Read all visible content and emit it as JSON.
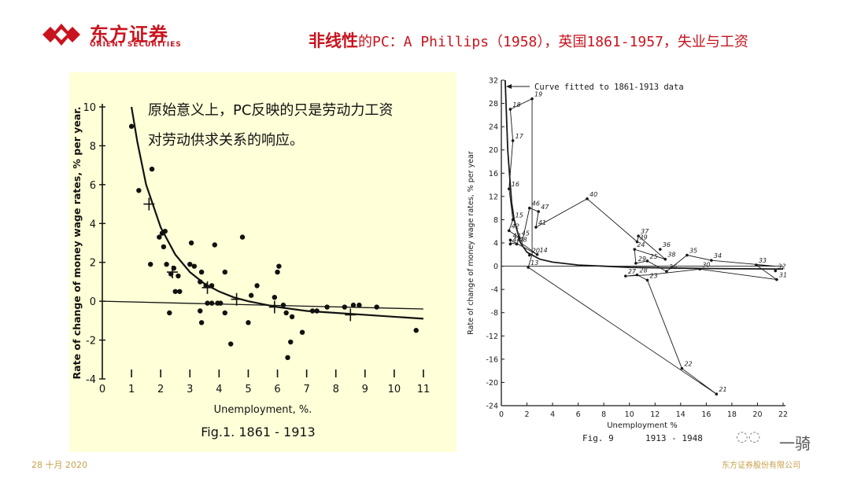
{
  "header": {
    "brand_cn": "东方证券",
    "brand_en": "ORIENT SECURITIES",
    "title_em": "非线性",
    "title_rest": "的PC：A Phillips（1958），英国1861-1957，失业与工资"
  },
  "footer": {
    "date": "28 十月 2020",
    "company": "东方证券股份有限公司"
  },
  "watermark": {
    "name": "一骑"
  },
  "colors": {
    "brand_red": "#c8141e",
    "footer_gold": "#c8a04a",
    "scan_bg": "#ffffd8"
  },
  "chart_data": [
    {
      "type": "scatter",
      "caption": "Fig.1. 1861 - 1913",
      "annotation": [
        "原始意义上，PC反映的只是劳动力工资",
        "对劳动供求关系的响应。"
      ],
      "xlabel": "Unemployment,   %.",
      "ylabel": "Rate of change of money wage rates, % per year.",
      "xlim": [
        0,
        11
      ],
      "ylim": [
        -4,
        10
      ],
      "x_ticks": [
        0,
        1,
        2,
        3,
        4,
        5,
        6,
        7,
        8,
        9,
        10,
        11
      ],
      "y_ticks": [
        -4,
        -2,
        0,
        2,
        4,
        6,
        8,
        10
      ],
      "points": [
        [
          1.0,
          9.0
        ],
        [
          1.25,
          5.7
        ],
        [
          1.7,
          6.8
        ],
        [
          1.65,
          1.9
        ],
        [
          1.95,
          3.3
        ],
        [
          2.05,
          3.5
        ],
        [
          2.1,
          2.8
        ],
        [
          2.15,
          3.6
        ],
        [
          2.2,
          1.9
        ],
        [
          2.35,
          1.4
        ],
        [
          2.45,
          1.7
        ],
        [
          2.6,
          1.3
        ],
        [
          2.3,
          -0.6
        ],
        [
          2.5,
          0.5
        ],
        [
          2.65,
          0.5
        ],
        [
          3.0,
          1.9
        ],
        [
          3.15,
          1.8
        ],
        [
          3.05,
          3.0
        ],
        [
          3.35,
          1.0
        ],
        [
          3.35,
          -0.5
        ],
        [
          3.4,
          -1.1
        ],
        [
          3.4,
          1.5
        ],
        [
          3.55,
          0.8
        ],
        [
          3.6,
          -0.1
        ],
        [
          3.75,
          -0.1
        ],
        [
          3.75,
          0.8
        ],
        [
          3.85,
          2.9
        ],
        [
          3.95,
          -0.1
        ],
        [
          4.05,
          -0.1
        ],
        [
          4.2,
          -0.6
        ],
        [
          4.4,
          -2.2
        ],
        [
          4.2,
          1.5
        ],
        [
          4.8,
          3.3
        ],
        [
          5.0,
          -1.1
        ],
        [
          5.1,
          0.3
        ],
        [
          5.3,
          0.8
        ],
        [
          5.9,
          0.2
        ],
        [
          6.0,
          1.5
        ],
        [
          6.05,
          1.8
        ],
        [
          6.2,
          -0.2
        ],
        [
          6.3,
          -0.6
        ],
        [
          6.35,
          -2.9
        ],
        [
          6.45,
          -2.1
        ],
        [
          6.5,
          -0.8
        ],
        [
          6.85,
          -1.6
        ],
        [
          7.2,
          -0.5
        ],
        [
          7.35,
          -0.5
        ],
        [
          7.7,
          -0.3
        ],
        [
          8.3,
          -0.3
        ],
        [
          8.6,
          -0.2
        ],
        [
          8.8,
          -0.2
        ],
        [
          9.4,
          -0.3
        ],
        [
          10.75,
          -1.5
        ]
      ],
      "crosses": [
        [
          1.6,
          5.0
        ],
        [
          2.4,
          1.5
        ],
        [
          3.6,
          0.7
        ],
        [
          4.6,
          0.1
        ],
        [
          5.9,
          -0.3
        ],
        [
          8.5,
          -0.7
        ]
      ],
      "curve": [
        [
          1.0,
          10.0
        ],
        [
          1.2,
          8.2
        ],
        [
          1.5,
          6.0
        ],
        [
          2.0,
          3.8
        ],
        [
          2.5,
          2.4
        ],
        [
          3.0,
          1.5
        ],
        [
          3.5,
          0.9
        ],
        [
          4.0,
          0.5
        ],
        [
          4.5,
          0.2
        ],
        [
          5.0,
          0.0
        ],
        [
          6.0,
          -0.3
        ],
        [
          7.0,
          -0.5
        ],
        [
          8.0,
          -0.6
        ],
        [
          9.0,
          -0.7
        ],
        [
          10.0,
          -0.8
        ],
        [
          11.0,
          -0.9
        ]
      ],
      "baseline": [
        [
          0,
          0
        ],
        [
          11,
          -0.4
        ]
      ]
    },
    {
      "type": "line",
      "caption_label": "Fig. 9",
      "caption_years": "1913 - 1948",
      "legend_note": "Curve fitted to 1861-1913 data",
      "xlabel": "Unemployment   %",
      "ylabel": "Rate of change of money wage rates, % per year",
      "xlim": [
        0,
        22
      ],
      "ylim": [
        -24,
        32
      ],
      "x_ticks": [
        0,
        2,
        4,
        6,
        8,
        10,
        12,
        14,
        16,
        18,
        20,
        22
      ],
      "y_ticks": [
        -24,
        -20,
        -16,
        -12,
        -8,
        -4,
        0,
        4,
        8,
        12,
        16,
        20,
        24,
        28,
        32
      ],
      "path": [
        [
          2.1,
          -0.2
        ],
        [
          2.4,
          2.0
        ],
        [
          2.4,
          28.8
        ],
        [
          0.7,
          27.0
        ],
        [
          0.9,
          21.6
        ],
        [
          0.6,
          13.3
        ],
        [
          0.9,
          8.0
        ],
        [
          0.6,
          6.1
        ],
        [
          0.8,
          5.8
        ],
        [
          1.4,
          4.9
        ],
        [
          1.2,
          3.8
        ],
        [
          0.7,
          4.0
        ],
        [
          0.7,
          4.5
        ],
        [
          2.8,
          2.0
        ],
        [
          1.6,
          3.9
        ],
        [
          2.2,
          10.0
        ],
        [
          2.9,
          9.4
        ],
        [
          2.7,
          6.7
        ],
        [
          6.7,
          11.6
        ],
        [
          10.6,
          4.2
        ],
        [
          10.7,
          5.2
        ],
        [
          12.8,
          1.2
        ],
        [
          10.4,
          2.9
        ],
        [
          10.5,
          0.5
        ],
        [
          11.4,
          0.9
        ],
        [
          12.9,
          -0.9
        ],
        [
          14.5,
          1.9
        ],
        [
          16.4,
          1.0
        ],
        [
          21.4,
          0.0
        ],
        [
          19.9,
          0.2
        ],
        [
          21.5,
          -2.3
        ],
        [
          15.5,
          -0.5
        ],
        [
          11.5,
          -1.5
        ],
        [
          9.7,
          -1.7
        ],
        [
          10.6,
          -1.5
        ],
        [
          11.4,
          -2.4
        ],
        [
          14.1,
          -17.6
        ],
        [
          16.8,
          -22.0
        ],
        [
          2.1,
          -0.2
        ]
      ],
      "labels": [
        [
          "13",
          2.1,
          -0.2
        ],
        [
          "14",
          2.8,
          2.0
        ],
        [
          "15",
          0.9,
          8.0
        ],
        [
          "16",
          0.6,
          13.3
        ],
        [
          "17",
          0.9,
          21.6
        ],
        [
          "18",
          0.7,
          27.0
        ],
        [
          "19",
          2.4,
          28.8
        ],
        [
          "20",
          2.2,
          1.9
        ],
        [
          "21",
          16.8,
          -22.0
        ],
        [
          "22",
          14.1,
          -17.6
        ],
        [
          "23",
          11.4,
          -2.4
        ],
        [
          "24",
          10.4,
          2.9
        ],
        [
          "25",
          11.4,
          0.9
        ],
        [
          "26",
          12.9,
          -0.9
        ],
        [
          "27",
          9.7,
          -1.7
        ],
        [
          "28",
          10.6,
          -1.5
        ],
        [
          "29",
          10.5,
          0.5
        ],
        [
          "30",
          15.5,
          -0.5
        ],
        [
          "31",
          21.5,
          -2.3
        ],
        [
          "32",
          21.4,
          -0.8
        ],
        [
          "33",
          19.9,
          0.2
        ],
        [
          "34",
          16.4,
          1.0
        ],
        [
          "35",
          14.5,
          1.9
        ],
        [
          "36",
          12.4,
          2.9
        ],
        [
          "37",
          10.7,
          5.2
        ],
        [
          "38",
          12.8,
          1.2
        ],
        [
          "39",
          10.6,
          4.2
        ],
        [
          "40",
          6.7,
          11.6
        ],
        [
          "41",
          2.7,
          6.7
        ],
        [
          "42",
          0.6,
          6.1
        ],
        [
          "43",
          0.7,
          4.5
        ],
        [
          "44",
          0.7,
          3.8
        ],
        [
          "45",
          1.4,
          4.9
        ],
        [
          "46",
          2.2,
          10.0
        ],
        [
          "47",
          2.9,
          9.4
        ],
        [
          "48",
          1.2,
          3.8
        ]
      ],
      "curve": [
        [
          0.3,
          32
        ],
        [
          0.5,
          20
        ],
        [
          0.8,
          11
        ],
        [
          1.0,
          8
        ],
        [
          1.5,
          4
        ],
        [
          2.0,
          2.4
        ],
        [
          3.0,
          1.2
        ],
        [
          4.0,
          0.7
        ],
        [
          6.0,
          0.2
        ],
        [
          10.0,
          -0.2
        ],
        [
          16.0,
          -0.4
        ],
        [
          22.0,
          -0.5
        ]
      ],
      "baseline": [
        [
          0,
          0
        ],
        [
          22,
          0
        ]
      ]
    }
  ]
}
